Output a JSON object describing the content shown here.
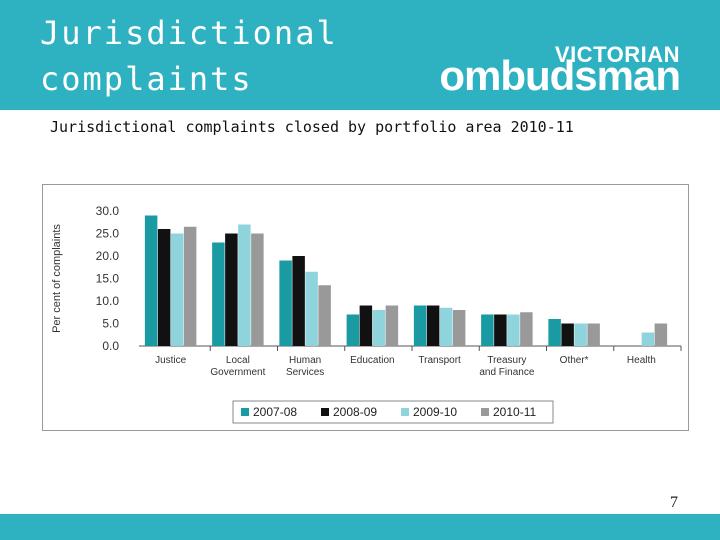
{
  "slide": {
    "title": "Jurisdictional\ncomplaints",
    "subtitle": "Jurisdictional complaints closed by portfolio area 2010-11",
    "page_number": "7"
  },
  "logo": {
    "top": "VICTORIAN",
    "main": "ombudsman"
  },
  "colors": {
    "header": "#2eb2c2",
    "series": [
      "#1a9aa3",
      "#111111",
      "#8fd4dd",
      "#999999"
    ]
  },
  "chart_data": {
    "type": "bar",
    "categories": [
      "Justice",
      "Local\nGovernment",
      "Human\nServices",
      "Education",
      "Transport",
      "Treasury\nand Finance",
      "Other*",
      "Health"
    ],
    "series": [
      {
        "name": "2007-08",
        "values": [
          29.0,
          23.0,
          19.0,
          7.0,
          9.0,
          7.0,
          6.0,
          null
        ]
      },
      {
        "name": "2008-09",
        "values": [
          26.0,
          25.0,
          20.0,
          9.0,
          9.0,
          7.0,
          5.0,
          null
        ]
      },
      {
        "name": "2009-10",
        "values": [
          25.0,
          27.0,
          16.5,
          8.0,
          8.5,
          7.0,
          5.0,
          3.0
        ]
      },
      {
        "name": "2010-11",
        "values": [
          26.5,
          25.0,
          13.5,
          9.0,
          8.0,
          7.5,
          5.0,
          5.0
        ]
      }
    ],
    "yticks": [
      "0.0",
      "5.0",
      "10.0",
      "15.0",
      "20.0",
      "25.0",
      "30.0"
    ],
    "ylabel": "Per cent of complaints",
    "ylim": [
      0,
      30
    ],
    "legend_position": "bottom",
    "grid": false
  }
}
